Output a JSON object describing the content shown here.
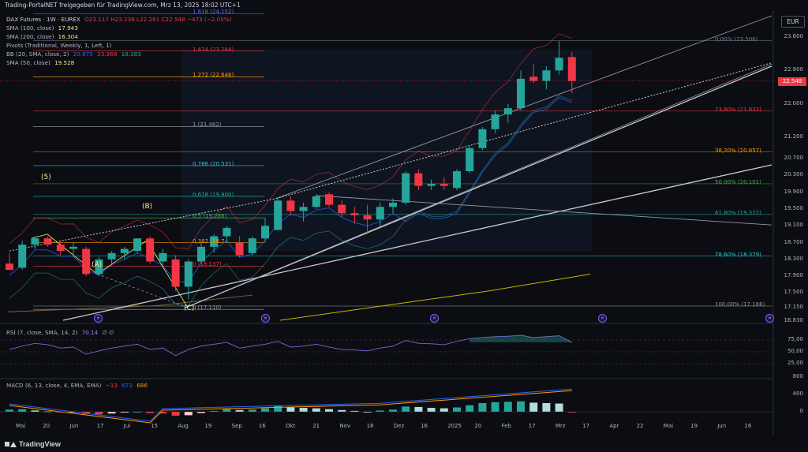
{
  "header": {
    "title": "Trading-PortalNET freigegeben für TradingView.com, Mrz 13, 2025 18:02 UTC+1"
  },
  "legend": {
    "symbol": "DAX Futures · 1W · EUREX",
    "ohlc": "O23.117 H23.238 L22.261 C22.548 −473 (−2.05%)",
    "sma100_label": "SMA (100, close)",
    "sma100_value": "17.943",
    "sma200_label": "SMA (200, close)",
    "sma200_value": "16.304",
    "pivots_label": "Pivots (Traditional, Weekly, 1, Left, 1)",
    "bb_label": "BB (20, SMA, close, 2)",
    "bb_v1": "20.875",
    "bb_v2": "23.368",
    "bb_v3": "18.383",
    "sma50_label": "SMA (50, close)",
    "sma50_value": "19.528"
  },
  "currency": "EUR",
  "current_price": "22.548",
  "price_axis": [
    "23.600",
    "22.800",
    "22.000",
    "21.200",
    "20.700",
    "20.300",
    "19.900",
    "19.500",
    "19.100",
    "18.700",
    "18.300",
    "17.900",
    "17.500",
    "17.150",
    "16.830"
  ],
  "rsi_axis": [
    "75,00",
    "50,00",
    "25,00"
  ],
  "macd_axis": [
    "800",
    "400",
    "0"
  ],
  "fib_left": [
    {
      "label": "1,618 (24.152)",
      "color": "#5b6cff"
    },
    {
      "label": "1,414 (23.264)",
      "color": "#f23645"
    },
    {
      "label": "1,272 (22.646)",
      "color": "#ff9800"
    },
    {
      "label": "1 (21.462)",
      "color": "#9598a1"
    },
    {
      "label": "0,786 (20.531)",
      "color": "#2ec4d6"
    },
    {
      "label": "0,618 (19.800)",
      "color": "#26a69a"
    },
    {
      "label": "0,5 (19.286)",
      "color": "#4caf50"
    },
    {
      "label": "0,382 (18.7",
      "color": "#ff9800"
    },
    {
      "label": "0 (18.137)",
      "color": "#f23645"
    },
    {
      "label": "0 (17.110)",
      "color": "#9598a1"
    }
  ],
  "fib_right": [
    {
      "label": "0,00% (23.506)",
      "color": "#787b86"
    },
    {
      "label": "23,60% (21.832)",
      "color": "#f23645"
    },
    {
      "label": "38,20% (20.857)",
      "color": "#ff9800"
    },
    {
      "label": "50,00% (20.101)",
      "color": "#4caf50"
    },
    {
      "label": "61,80% (19.372)",
      "color": "#26a69a"
    },
    {
      "label": "78,60% (18.379)",
      "color": "#2ec4d6"
    },
    {
      "label": "100,00% (17.188)",
      "color": "#9598a1"
    }
  ],
  "waves": [
    "(5)",
    "(A)",
    "(B)",
    "(C)"
  ],
  "rsi_legend": {
    "label": "RSI (7, close, SMA, 14, 2)",
    "value": "70,14",
    "extra": "∅ ∅"
  },
  "macd_legend": {
    "label": "MACD (6, 13, close, 4, EMA, EMA)",
    "v1": "−13",
    "v2": "673",
    "v3": "686"
  },
  "time_axis": [
    "Mai",
    "20",
    "Jun",
    "17",
    "Jul",
    "15",
    "Aug",
    "19",
    "Sep",
    "16",
    "Okt",
    "21",
    "Nov",
    "18",
    "Dez",
    "16",
    "2025",
    "20",
    "Feb",
    "17",
    "Mrz",
    "17",
    "Apr",
    "22",
    "Mai",
    "19",
    "Jun",
    "16"
  ],
  "footer": {
    "brand": "TradingView"
  },
  "colors": {
    "up": "#26a69a",
    "down": "#f23645",
    "background": "#0b0d12"
  },
  "chart_data": {
    "type": "candlestick",
    "title": "DAX Futures · 1W · EUREX",
    "candles": [
      {
        "o": 18.2,
        "h": 18.45,
        "l": 18.05,
        "c": 18.05
      },
      {
        "o": 18.1,
        "h": 18.75,
        "l": 18.05,
        "c": 18.65
      },
      {
        "o": 18.65,
        "h": 18.85,
        "l": 18.55,
        "c": 18.8
      },
      {
        "o": 18.8,
        "h": 18.85,
        "l": 18.6,
        "c": 18.65
      },
      {
        "o": 18.65,
        "h": 18.75,
        "l": 18.4,
        "c": 18.5
      },
      {
        "o": 18.55,
        "h": 18.7,
        "l": 18.35,
        "c": 18.6
      },
      {
        "o": 18.55,
        "h": 18.6,
        "l": 17.9,
        "c": 17.95
      },
      {
        "o": 17.95,
        "h": 18.35,
        "l": 17.9,
        "c": 18.3
      },
      {
        "o": 18.3,
        "h": 18.5,
        "l": 18.15,
        "c": 18.45
      },
      {
        "o": 18.45,
        "h": 18.6,
        "l": 18.3,
        "c": 18.55
      },
      {
        "o": 18.5,
        "h": 18.8,
        "l": 18.45,
        "c": 18.8
      },
      {
        "o": 18.8,
        "h": 18.85,
        "l": 18.2,
        "c": 18.25
      },
      {
        "o": 18.25,
        "h": 18.55,
        "l": 18.1,
        "c": 18.45
      },
      {
        "o": 18.3,
        "h": 18.4,
        "l": 17.55,
        "c": 17.65
      },
      {
        "o": 17.65,
        "h": 18.3,
        "l": 17.35,
        "c": 18.25
      },
      {
        "o": 18.25,
        "h": 18.7,
        "l": 18.2,
        "c": 18.6
      },
      {
        "o": 18.6,
        "h": 18.9,
        "l": 18.45,
        "c": 18.85
      },
      {
        "o": 18.85,
        "h": 19.1,
        "l": 18.7,
        "c": 19.05
      },
      {
        "o": 18.7,
        "h": 18.85,
        "l": 18.35,
        "c": 18.4
      },
      {
        "o": 18.45,
        "h": 18.85,
        "l": 18.4,
        "c": 18.8
      },
      {
        "o": 18.8,
        "h": 19.3,
        "l": 18.7,
        "c": 19.1
      },
      {
        "o": 19.0,
        "h": 19.75,
        "l": 19.0,
        "c": 19.7
      },
      {
        "o": 19.7,
        "h": 19.8,
        "l": 19.35,
        "c": 19.45
      },
      {
        "o": 19.45,
        "h": 19.65,
        "l": 19.2,
        "c": 19.55
      },
      {
        "o": 19.55,
        "h": 19.85,
        "l": 19.5,
        "c": 19.8
      },
      {
        "o": 19.85,
        "h": 19.9,
        "l": 19.55,
        "c": 19.6
      },
      {
        "o": 19.6,
        "h": 19.7,
        "l": 19.3,
        "c": 19.4
      },
      {
        "o": 19.4,
        "h": 19.55,
        "l": 19.15,
        "c": 19.35
      },
      {
        "o": 19.35,
        "h": 19.6,
        "l": 18.9,
        "c": 19.25
      },
      {
        "o": 19.25,
        "h": 19.65,
        "l": 19.1,
        "c": 19.55
      },
      {
        "o": 19.55,
        "h": 19.75,
        "l": 19.4,
        "c": 19.65
      },
      {
        "o": 19.65,
        "h": 20.4,
        "l": 19.6,
        "c": 20.35
      },
      {
        "o": 20.35,
        "h": 20.45,
        "l": 19.95,
        "c": 20.05
      },
      {
        "o": 20.05,
        "h": 20.2,
        "l": 19.95,
        "c": 20.1
      },
      {
        "o": 20.1,
        "h": 20.25,
        "l": 19.95,
        "c": 20.05
      },
      {
        "o": 20.0,
        "h": 20.45,
        "l": 19.95,
        "c": 20.4
      },
      {
        "o": 20.4,
        "h": 21.0,
        "l": 20.35,
        "c": 20.95
      },
      {
        "o": 20.95,
        "h": 21.45,
        "l": 20.9,
        "c": 21.4
      },
      {
        "o": 21.4,
        "h": 21.85,
        "l": 21.3,
        "c": 21.75
      },
      {
        "o": 21.75,
        "h": 22.0,
        "l": 21.55,
        "c": 21.9
      },
      {
        "o": 21.9,
        "h": 22.8,
        "l": 21.85,
        "c": 22.6
      },
      {
        "o": 22.65,
        "h": 22.95,
        "l": 22.5,
        "c": 22.55
      },
      {
        "o": 22.55,
        "h": 22.9,
        "l": 22.35,
        "c": 22.8
      },
      {
        "o": 22.8,
        "h": 23.5,
        "l": 22.7,
        "c": 23.1
      },
      {
        "o": 23.117,
        "h": 23.238,
        "l": 22.261,
        "c": 22.548
      }
    ],
    "ylim": [
      16.7,
      24.1
    ],
    "fib_levels_left": [
      24.152,
      23.264,
      22.646,
      21.462,
      20.531,
      19.8,
      19.286,
      18.7,
      18.137,
      17.11
    ],
    "fib_levels_right": [
      23.506,
      21.832,
      20.857,
      20.101,
      19.372,
      18.379,
      17.188
    ],
    "rsi": [
      55,
      62,
      68,
      65,
      58,
      60,
      45,
      52,
      58,
      62,
      66,
      55,
      58,
      42,
      55,
      62,
      66,
      70,
      58,
      62,
      66,
      72,
      60,
      62,
      66,
      60,
      55,
      54,
      52,
      58,
      62,
      74,
      68,
      67,
      65,
      72,
      78,
      80,
      82,
      83,
      85,
      80,
      82,
      84,
      70
    ],
    "macd_hist": [
      50,
      60,
      30,
      10,
      -20,
      -10,
      -50,
      -60,
      -40,
      -20,
      0,
      -30,
      -40,
      -90,
      -80,
      -30,
      20,
      60,
      40,
      50,
      80,
      140,
      100,
      90,
      80,
      60,
      40,
      20,
      0,
      30,
      50,
      120,
      110,
      90,
      80,
      100,
      150,
      200,
      220,
      230,
      240,
      210,
      200,
      190,
      -13
    ]
  }
}
